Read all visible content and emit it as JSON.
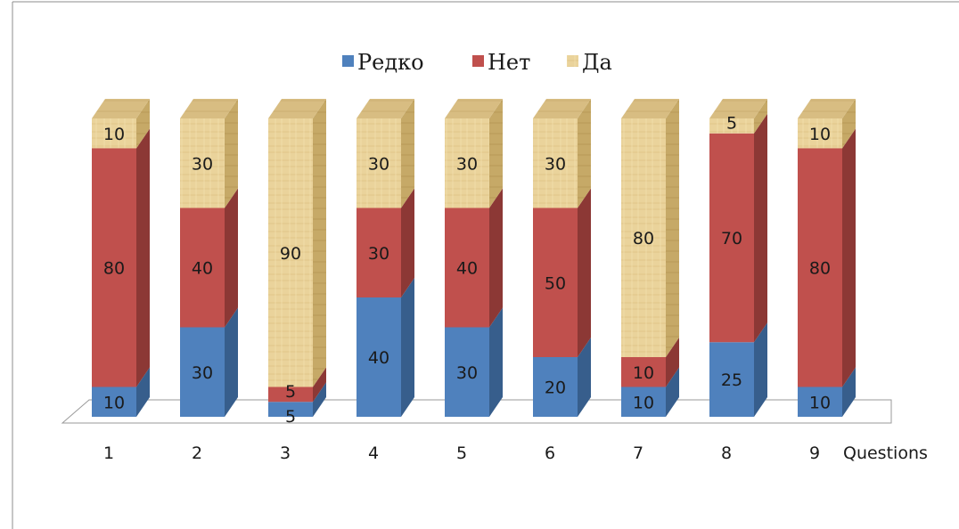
{
  "chart_data": {
    "type": "bar",
    "stacked": true,
    "three_d": true,
    "categories": [
      "1",
      "2",
      "3",
      "4",
      "5",
      "6",
      "7",
      "8",
      "9"
    ],
    "series": [
      {
        "name": "Редко",
        "color": "#4f81bd",
        "values": [
          10,
          30,
          5,
          40,
          30,
          20,
          10,
          25,
          10
        ]
      },
      {
        "name": "Нет",
        "color": "#c0504d",
        "values": [
          80,
          40,
          5,
          30,
          40,
          50,
          10,
          70,
          80
        ]
      },
      {
        "name": "Да",
        "color": "#e8cf94",
        "values": [
          10,
          30,
          90,
          30,
          30,
          30,
          80,
          5,
          10
        ]
      }
    ],
    "xlabel": "Questions",
    "ylim": [
      0,
      100
    ],
    "legend_position": "top",
    "grid": false
  }
}
